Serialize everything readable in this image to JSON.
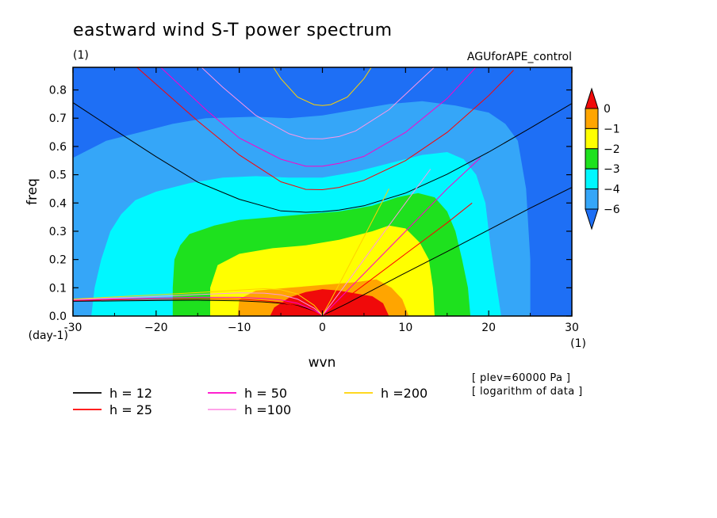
{
  "chart_data": {
    "type": "heatmap",
    "title": "eastward wind S-T power spectrum",
    "subtitle_left": "(1)",
    "subtitle_right": "AGUforAPE_control",
    "xlabel": "wvn",
    "ylabel": "freq",
    "x_unit": "(1)",
    "y_unit": "(day-1)",
    "xlim": [
      -30,
      30
    ],
    "ylim": [
      0,
      0.88
    ],
    "x_ticks": [
      -30,
      -20,
      -10,
      0,
      10,
      20,
      30
    ],
    "y_ticks": [
      0.0,
      0.1,
      0.2,
      0.3,
      0.4,
      0.5,
      0.6,
      0.7,
      0.8
    ],
    "x_tick_labels": [
      "-30",
      "−20",
      "−10",
      "0",
      "10",
      "20",
      "30"
    ],
    "y_tick_labels": [
      "0.0",
      "0.1",
      "0.2",
      "0.3",
      "0.4",
      "0.5",
      "0.6",
      "0.7",
      "0.8"
    ],
    "colorbar": {
      "levels": [
        -6,
        -4,
        -3,
        -2,
        -1,
        0
      ],
      "level_labels": [
        "−6",
        "−4",
        "−3",
        "−2",
        "−1",
        "0"
      ],
      "colors": [
        "#1e6ff5",
        "#35a6f8",
        "#00f7ff",
        "#1ee11e",
        "#ffff00",
        "#ffa500",
        "#f00a0a"
      ]
    },
    "contour_regions": [
      {
        "level_min": -6,
        "level_max": -4,
        "color": "#35a6f8",
        "boundary": [
          [
            -30,
            0.56
          ],
          [
            -28,
            0.59
          ],
          [
            -26,
            0.62
          ],
          [
            -22,
            0.65
          ],
          [
            -18,
            0.68
          ],
          [
            -14,
            0.7
          ],
          [
            -8,
            0.705
          ],
          [
            -4,
            0.7
          ],
          [
            0,
            0.71
          ],
          [
            4,
            0.73
          ],
          [
            8,
            0.75
          ],
          [
            12,
            0.76
          ],
          [
            16,
            0.745
          ],
          [
            20,
            0.72
          ],
          [
            22,
            0.68
          ],
          [
            23.5,
            0.62
          ],
          [
            24.5,
            0.45
          ],
          [
            25,
            0.2
          ],
          [
            25,
            0.0
          ],
          [
            -30,
            0.0
          ]
        ]
      },
      {
        "level_min": -4,
        "level_max": -3,
        "color": "#00f7ff",
        "boundary": [
          [
            -27.8,
            0.0
          ],
          [
            -27.4,
            0.1
          ],
          [
            -26.6,
            0.2
          ],
          [
            -25.5,
            0.3
          ],
          [
            -24.2,
            0.36
          ],
          [
            -22.5,
            0.41
          ],
          [
            -20,
            0.44
          ],
          [
            -16,
            0.47
          ],
          [
            -12,
            0.49
          ],
          [
            -8,
            0.495
          ],
          [
            -4,
            0.49
          ],
          [
            0,
            0.49
          ],
          [
            4,
            0.51
          ],
          [
            8,
            0.54
          ],
          [
            12,
            0.57
          ],
          [
            15,
            0.58
          ],
          [
            17,
            0.555
          ],
          [
            18.5,
            0.5
          ],
          [
            19.6,
            0.4
          ],
          [
            20.2,
            0.25
          ],
          [
            21,
            0.1
          ],
          [
            21.5,
            0.0
          ]
        ]
      },
      {
        "level_min": -3,
        "level_max": -2,
        "color": "#1ee11e",
        "boundary": [
          [
            -18,
            0.0
          ],
          [
            -18,
            0.1
          ],
          [
            -17.8,
            0.2
          ],
          [
            -17.1,
            0.25
          ],
          [
            -16,
            0.29
          ],
          [
            -13,
            0.32
          ],
          [
            -10,
            0.34
          ],
          [
            -6,
            0.35
          ],
          [
            -2,
            0.36
          ],
          [
            2,
            0.37
          ],
          [
            6,
            0.39
          ],
          [
            9,
            0.42
          ],
          [
            11.5,
            0.435
          ],
          [
            13.5,
            0.42
          ],
          [
            15,
            0.37
          ],
          [
            16,
            0.3
          ],
          [
            16.8,
            0.2
          ],
          [
            17.5,
            0.1
          ],
          [
            17.8,
            0.0
          ]
        ]
      },
      {
        "level_min": -2,
        "level_max": -1,
        "color": "#ffff00",
        "boundary": [
          [
            -13.5,
            0.0
          ],
          [
            -13.5,
            0.1
          ],
          [
            -12.6,
            0.18
          ],
          [
            -10,
            0.22
          ],
          [
            -6,
            0.24
          ],
          [
            -2,
            0.25
          ],
          [
            2,
            0.27
          ],
          [
            6,
            0.3
          ],
          [
            8,
            0.32
          ],
          [
            10,
            0.31
          ],
          [
            11.7,
            0.26
          ],
          [
            12.8,
            0.2
          ],
          [
            13.3,
            0.1
          ],
          [
            13.5,
            0.0
          ]
        ]
      },
      {
        "level_min": -1,
        "level_max": 0,
        "color": "#ffa500",
        "boundary": [
          [
            -10.2,
            0.0
          ],
          [
            -10,
            0.06
          ],
          [
            -8,
            0.09
          ],
          [
            -4,
            0.1
          ],
          [
            0,
            0.11
          ],
          [
            4,
            0.12
          ],
          [
            6.5,
            0.13
          ],
          [
            8.3,
            0.1
          ],
          [
            9.6,
            0.06
          ],
          [
            10.4,
            0.0
          ]
        ]
      },
      {
        "level_min": 0,
        "level_max": null,
        "color": "#f00a0a",
        "boundary": [
          [
            -6.3,
            0.0
          ],
          [
            -5.8,
            0.03
          ],
          [
            -4,
            0.065
          ],
          [
            -2,
            0.085
          ],
          [
            0,
            0.095
          ],
          [
            2,
            0.09
          ],
          [
            4,
            0.08
          ],
          [
            6,
            0.07
          ],
          [
            7.3,
            0.045
          ],
          [
            8,
            0.0
          ]
        ]
      }
    ],
    "series": [
      {
        "name": "h = 12",
        "color": "#000000",
        "curves": [
          {
            "x": [
              -30,
              -25,
              -20,
              -15,
              -10,
              -5,
              -2,
              0,
              2,
              5,
              10,
              15,
              20,
              25,
              30
            ],
            "y": [
              0.755,
              0.659,
              0.564,
              0.474,
              0.413,
              0.372,
              0.367,
              0.369,
              0.375,
              0.39,
              0.435,
              0.502,
              0.58,
              0.665,
              0.752
            ]
          },
          {
            "x": [
              -30,
              -20,
              -15,
              -10,
              -7,
              -5,
              -3,
              -2,
              -1,
              0
            ],
            "y": [
              0.052,
              0.055,
              0.056,
              0.054,
              0.05,
              0.045,
              0.037,
              0.028,
              0.016,
              0.003
            ]
          },
          {
            "x": [
              0,
              1,
              3,
              5,
              10,
              15,
              20,
              25,
              30
            ],
            "y": [
              0.003,
              0.016,
              0.045,
              0.076,
              0.153,
              0.228,
              0.305,
              0.382,
              0.455
            ]
          }
        ]
      },
      {
        "name": "h = 25",
        "color": "#ff0000",
        "curves": [
          {
            "x": [
              -25,
              -20,
              -15,
              -10,
              -5,
              -2,
              0,
              2,
              5,
              10,
              15,
              20,
              23
            ],
            "y": [
              0.95,
              0.82,
              0.69,
              0.57,
              0.475,
              0.448,
              0.447,
              0.455,
              0.48,
              0.55,
              0.65,
              0.78,
              0.87
            ]
          },
          {
            "x": [
              -30,
              -20,
              -15,
              -10,
              -7,
              -5,
              -3,
              -1,
              0
            ],
            "y": [
              0.055,
              0.059,
              0.061,
              0.06,
              0.054,
              0.048,
              0.035,
              0.015,
              0.003
            ]
          },
          {
            "x": [
              0,
              1,
              3,
              5,
              10,
              15,
              18
            ],
            "y": [
              0.003,
              0.022,
              0.066,
              0.11,
              0.22,
              0.33,
              0.4
            ]
          }
        ]
      },
      {
        "name": "h = 50",
        "color": "#ff00c8",
        "curves": [
          {
            "x": [
              -22,
              -18,
              -14,
              -10,
              -5,
              -2,
              0,
              2,
              5,
              10,
              15,
              20
            ],
            "y": [
              0.95,
              0.84,
              0.73,
              0.63,
              0.555,
              0.53,
              0.53,
              0.54,
              0.565,
              0.65,
              0.77,
              0.93
            ]
          },
          {
            "x": [
              -30,
              -20,
              -15,
              -10,
              -7,
              -5,
              -3,
              -1,
              0
            ],
            "y": [
              0.057,
              0.064,
              0.066,
              0.066,
              0.062,
              0.057,
              0.045,
              0.02,
              0.003
            ]
          },
          {
            "x": [
              0,
              1,
              3,
              5,
              10,
              15,
              19
            ],
            "y": [
              0.003,
              0.03,
              0.09,
              0.15,
              0.3,
              0.45,
              0.56
            ]
          }
        ]
      },
      {
        "name": "h =100",
        "color": "#ff96e6",
        "curves": [
          {
            "x": [
              -16,
              -12,
              -8,
              -4,
              -2,
              0,
              2,
              4,
              8,
              12,
              16
            ],
            "y": [
              0.92,
              0.81,
              0.71,
              0.645,
              0.628,
              0.627,
              0.635,
              0.655,
              0.73,
              0.84,
              0.95
            ]
          },
          {
            "x": [
              -30,
              -20,
              -15,
              -10,
              -7,
              -5,
              -3,
              -1,
              0
            ],
            "y": [
              0.058,
              0.069,
              0.076,
              0.082,
              0.081,
              0.075,
              0.06,
              0.028,
              0.003
            ]
          },
          {
            "x": [
              0,
              1,
              3,
              5,
              10,
              13
            ],
            "y": [
              0.003,
              0.041,
              0.12,
              0.2,
              0.4,
              0.52
            ]
          }
        ]
      },
      {
        "name": "h =200",
        "color": "#ffd200",
        "curves": [
          {
            "x": [
              -7,
              -5,
              -3,
              -1,
              0,
              1,
              3,
              5,
              7
            ],
            "y": [
              0.93,
              0.84,
              0.775,
              0.748,
              0.745,
              0.748,
              0.775,
              0.84,
              0.93
            ]
          },
          {
            "x": [
              -30,
              -20,
              -15,
              -10,
              -7,
              -5,
              -3,
              -1,
              0
            ],
            "y": [
              0.06,
              0.075,
              0.083,
              0.092,
              0.097,
              0.093,
              0.078,
              0.038,
              0.003
            ]
          },
          {
            "x": [
              0,
              1,
              3,
              5,
              8
            ],
            "y": [
              0.003,
              0.056,
              0.168,
              0.28,
              0.45
            ]
          }
        ]
      }
    ],
    "notes": [
      "[ plev=60000 Pa ]",
      "[ logarithm of data ]"
    ]
  }
}
